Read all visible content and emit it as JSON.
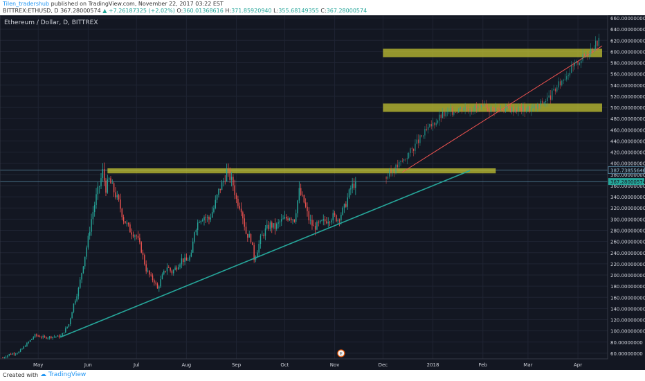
{
  "header": {
    "author": "Tilen_tradershub",
    "published_text": " published on TradingView.com, November 22, 2017 03:22 EST",
    "symbol": "BITTREX:ETHUSD, D",
    "last": "367.28000574",
    "change": "▲ +7.26187325 (+2.02%)",
    "open_label": "O:",
    "open": "360.01368616",
    "high_label": "H:",
    "high": "371.85920940",
    "low_label": "L:",
    "low": "355.68149355",
    "close_label": "C:",
    "close": "367.28000574"
  },
  "footer": {
    "created_with": "Created with",
    "brand": "TradingView"
  },
  "colors": {
    "background": "#131722",
    "up": "#26a69a",
    "down": "#ef5350",
    "zone": "#c8c832",
    "trendline": "#26a69a"
  },
  "chart_data": {
    "type": "candlestick",
    "title": "Ethereum / Dollar, D, BITTREX",
    "y_range": [
      50,
      665
    ],
    "y_ticks": [
      60,
      80,
      100,
      120,
      140,
      160,
      180,
      200,
      220,
      240,
      260,
      280,
      300,
      320,
      340,
      360,
      380,
      400,
      420,
      440,
      460,
      480,
      500,
      520,
      540,
      560,
      580,
      600,
      620,
      640,
      660
    ],
    "y_tick_labels": [
      "60.00000000",
      "80.00000000",
      "100.00000000",
      "120.00000000",
      "140.00000000",
      "160.00000000",
      "180.00000000",
      "200.00000000",
      "220.00000000",
      "240.00000000",
      "260.00000000",
      "280.00000000",
      "300.00000000",
      "320.00000000",
      "340.00000000",
      "360.00000000",
      "380.00000000",
      "400.00000000",
      "420.00000000",
      "440.00000000",
      "460.00000000",
      "480.00000000",
      "500.00000000",
      "520.00000000",
      "540.00000000",
      "560.00000000",
      "580.00000000",
      "600.00000000",
      "620.00000000",
      "640.00000000",
      "660.00000000"
    ],
    "x_range": [
      0,
      372
    ],
    "x_ticks": [
      {
        "label": "May",
        "day": 22
      },
      {
        "label": "Jun",
        "day": 53
      },
      {
        "label": "Jul",
        "day": 83
      },
      {
        "label": "Aug",
        "day": 114
      },
      {
        "label": "Sep",
        "day": 145
      },
      {
        "label": "Oct",
        "day": 175
      },
      {
        "label": "Nov",
        "day": 206
      },
      {
        "label": "Dec",
        "day": 236
      },
      {
        "label": "2018",
        "day": 267
      },
      {
        "label": "Feb",
        "day": 298
      },
      {
        "label": "Mar",
        "day": 326
      },
      {
        "label": "Apr",
        "day": 357
      }
    ],
    "price_labels": [
      {
        "value": 387.73855646,
        "label": "387.73855646",
        "style": "outline"
      },
      {
        "value": 367.28000574,
        "label": "367.28000574",
        "style": "filled"
      }
    ],
    "horizontal_lines": [
      387.73855646,
      367.28000574
    ],
    "zones": [
      {
        "x_start": 65,
        "x_end": 306,
        "y_low": 382,
        "y_high": 391
      },
      {
        "x_start": 236,
        "x_end": 372,
        "y_low": 492,
        "y_high": 507
      },
      {
        "x_start": 236,
        "x_end": 372,
        "y_low": 590,
        "y_high": 605
      }
    ],
    "trendline": {
      "x1": 36,
      "y1": 89,
      "x2": 290,
      "y2": 387
    },
    "projection": {
      "x1": 248,
      "y1": 384,
      "x2": 372,
      "y2": 610
    },
    "anchors": [
      [
        0,
        52
      ],
      [
        4,
        58
      ],
      [
        10,
        62
      ],
      [
        16,
        80
      ],
      [
        20,
        92
      ],
      [
        26,
        88
      ],
      [
        32,
        90
      ],
      [
        36,
        90
      ],
      [
        41,
        112
      ],
      [
        44,
        148
      ],
      [
        47,
        175
      ],
      [
        50,
        220
      ],
      [
        53,
        265
      ],
      [
        55,
        300
      ],
      [
        58,
        340
      ],
      [
        60,
        360
      ],
      [
        62,
        385
      ],
      [
        64,
        355
      ],
      [
        66,
        370
      ],
      [
        69,
        350
      ],
      [
        72,
        330
      ],
      [
        75,
        300
      ],
      [
        79,
        280
      ],
      [
        83,
        270
      ],
      [
        86,
        245
      ],
      [
        89,
        210
      ],
      [
        92,
        195
      ],
      [
        94,
        190
      ],
      [
        96,
        175
      ],
      [
        99,
        198
      ],
      [
        102,
        215
      ],
      [
        105,
        205
      ],
      [
        108,
        215
      ],
      [
        111,
        228
      ],
      [
        114,
        225
      ],
      [
        117,
        235
      ],
      [
        119,
        280
      ],
      [
        122,
        300
      ],
      [
        125,
        305
      ],
      [
        128,
        300
      ],
      [
        131,
        320
      ],
      [
        134,
        350
      ],
      [
        137,
        368
      ],
      [
        139,
        385
      ],
      [
        141,
        375
      ],
      [
        143,
        362
      ],
      [
        145,
        335
      ],
      [
        148,
        320
      ],
      [
        151,
        275
      ],
      [
        154,
        265
      ],
      [
        156,
        230
      ],
      [
        158,
        245
      ],
      [
        160,
        265
      ],
      [
        163,
        280
      ],
      [
        166,
        290
      ],
      [
        169,
        285
      ],
      [
        172,
        295
      ],
      [
        175,
        300
      ],
      [
        178,
        305
      ],
      [
        181,
        300
      ],
      [
        184,
        350
      ],
      [
        187,
        330
      ],
      [
        190,
        300
      ],
      [
        193,
        285
      ],
      [
        196,
        290
      ],
      [
        199,
        295
      ],
      [
        202,
        300
      ],
      [
        205,
        305
      ],
      [
        208,
        300
      ],
      [
        212,
        320
      ],
      [
        216,
        355
      ],
      [
        219,
        367
      ]
    ],
    "markers": [
      {
        "day": 210,
        "label": "E"
      }
    ]
  }
}
